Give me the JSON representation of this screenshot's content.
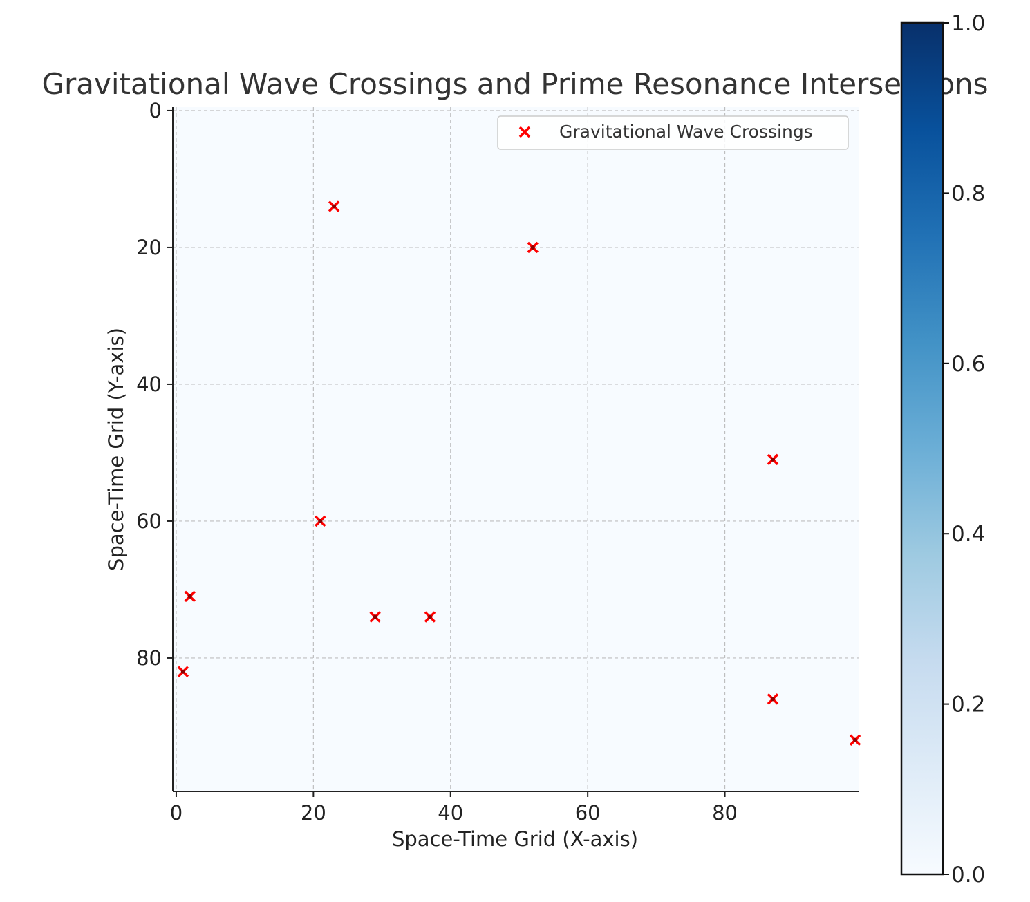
{
  "chart_data": {
    "type": "scatter",
    "title": "Gravitational Wave Crossings and Prime Resonance Intersections",
    "xlabel": "Space-Time Grid (X-axis)",
    "ylabel": "Space-Time Grid (Y-axis)",
    "xlim": [
      -0.5,
      99.5
    ],
    "ylim": [
      99.5,
      -0.5
    ],
    "y_inverted": true,
    "xticks": [
      0,
      20,
      40,
      60,
      80
    ],
    "yticks": [
      0,
      20,
      40,
      60,
      80
    ],
    "grid": true,
    "background_heatmap": {
      "cmap": "Blues",
      "value": 0.0
    },
    "colorbar": {
      "range": [
        0.0,
        1.0
      ],
      "ticks": [
        "0.0",
        "0.2",
        "0.4",
        "0.6",
        "0.8",
        "1.0"
      ],
      "cmap": "Blues"
    },
    "legend": {
      "placement": "top-right",
      "entries": [
        "Gravitational Wave Crossings"
      ]
    },
    "series": [
      {
        "name": "Gravitational Wave Crossings",
        "marker": "x",
        "color": "#ff0000",
        "points": [
          {
            "x": 23,
            "y": 14
          },
          {
            "x": 52,
            "y": 20
          },
          {
            "x": 87,
            "y": 51
          },
          {
            "x": 21,
            "y": 60
          },
          {
            "x": 2,
            "y": 71
          },
          {
            "x": 29,
            "y": 74
          },
          {
            "x": 37,
            "y": 74
          },
          {
            "x": 1,
            "y": 82
          },
          {
            "x": 87,
            "y": 86
          },
          {
            "x": 99,
            "y": 92
          }
        ]
      }
    ]
  }
}
